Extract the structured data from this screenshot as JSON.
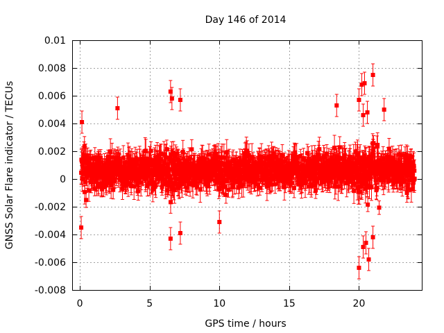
{
  "chart_data": {
    "type": "scatter",
    "title": "Day 146 of 2014",
    "xlabel": "GPS time / hours",
    "ylabel": "GNSS Solar Flare indicator / TECUs",
    "xlim": [
      -0.5,
      24.5
    ],
    "ylim": [
      -0.008,
      0.01
    ],
    "x_ticks": [
      0,
      5,
      10,
      15,
      20
    ],
    "x_tick_labels": [
      "0",
      "5",
      "10",
      "15",
      "20"
    ],
    "y_ticks": [
      -0.008,
      -0.006,
      -0.004,
      -0.002,
      0,
      0.002,
      0.004,
      0.006,
      0.008,
      0.01
    ],
    "y_tick_labels": [
      "-0.008",
      "-0.006",
      "-0.004",
      "-0.002",
      "0",
      "0.002",
      "0.004",
      "0.006",
      "0.008",
      "0.01"
    ],
    "grid": true,
    "series": [
      {
        "name": "GNSS Solar Flare indicator",
        "color": "#ff0000",
        "marker": "square",
        "error_bars": true,
        "sample_interval_hours": 0.00833,
        "typical_error": 0.0008,
        "notable_points": [
          {
            "x": 0.1,
            "y": -0.0035
          },
          {
            "x": 0.15,
            "y": 0.0041
          },
          {
            "x": 2.7,
            "y": 0.0051
          },
          {
            "x": 6.5,
            "y": 0.0063
          },
          {
            "x": 6.6,
            "y": 0.0058
          },
          {
            "x": 6.5,
            "y": -0.0043
          },
          {
            "x": 7.2,
            "y": 0.0057
          },
          {
            "x": 7.2,
            "y": -0.0039
          },
          {
            "x": 10.0,
            "y": -0.0031
          },
          {
            "x": 18.4,
            "y": 0.0053
          },
          {
            "x": 20.0,
            "y": 0.0057
          },
          {
            "x": 20.2,
            "y": 0.0068
          },
          {
            "x": 20.4,
            "y": 0.0069
          },
          {
            "x": 20.3,
            "y": 0.0046
          },
          {
            "x": 20.0,
            "y": -0.0064
          },
          {
            "x": 20.3,
            "y": -0.0049
          },
          {
            "x": 20.5,
            "y": -0.0046
          },
          {
            "x": 20.7,
            "y": -0.0058
          },
          {
            "x": 20.6,
            "y": 0.0048
          },
          {
            "x": 21.0,
            "y": 0.0075
          },
          {
            "x": 21.8,
            "y": 0.005
          },
          {
            "x": 21.0,
            "y": -0.0042
          }
        ]
      }
    ]
  }
}
